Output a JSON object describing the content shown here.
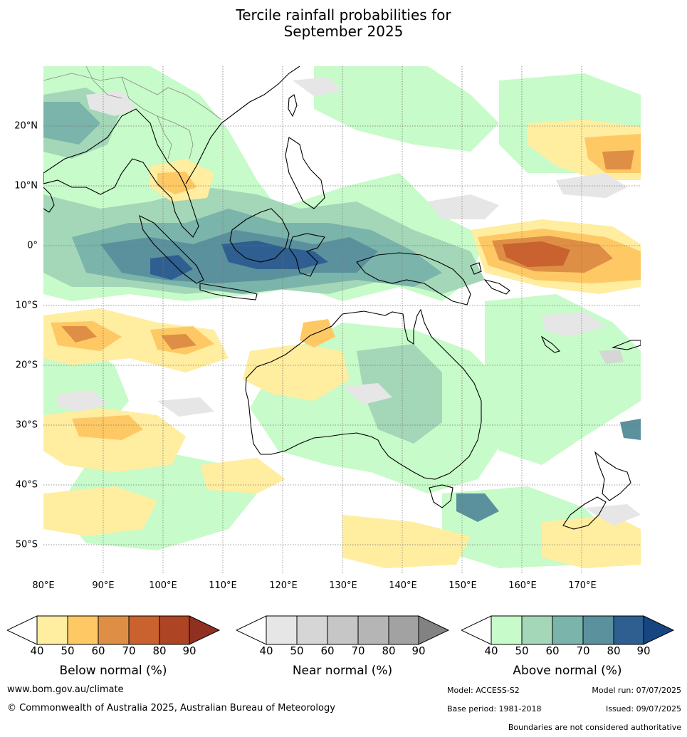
{
  "title_line1": "Tercile rainfall probabilities for",
  "title_line2": "September 2025",
  "lat_ticks": [
    "20°N",
    "10°N",
    "0°",
    "10°S",
    "20°S",
    "30°S",
    "40°S",
    "50°S"
  ],
  "lat_values": [
    20,
    10,
    0,
    -10,
    -20,
    -30,
    -40,
    -50
  ],
  "lon_ticks": [
    "80°E",
    "90°E",
    "100°E",
    "110°E",
    "120°E",
    "130°E",
    "140°E",
    "150°E",
    "160°E",
    "170°E"
  ],
  "lon_values": [
    80,
    90,
    100,
    110,
    120,
    130,
    140,
    150,
    160,
    170
  ],
  "map_extent": {
    "lon_min": 80,
    "lon_max": 180,
    "lat_min": -55,
    "lat_max": 30
  },
  "colorbars": [
    {
      "key": "below",
      "label": "Below normal (%)",
      "ticks": [
        "40",
        "50",
        "60",
        "70",
        "80",
        "90"
      ],
      "colors": [
        "#ffeda0",
        "#fec965",
        "#de8f45",
        "#c9622e",
        "#ad4424",
        "#8f3020"
      ],
      "ext_low": "#ffffff"
    },
    {
      "key": "near",
      "label": "Near normal (%)",
      "ticks": [
        "40",
        "50",
        "60",
        "70",
        "80",
        "90"
      ],
      "colors": [
        "#e6e6e6",
        "#d6d6d6",
        "#c6c6c6",
        "#b5b5b5",
        "#a2a2a2",
        "#828282"
      ],
      "ext_low": "#ffffff"
    },
    {
      "key": "above",
      "label": "Above normal (%)",
      "ticks": [
        "40",
        "50",
        "60",
        "70",
        "80",
        "90"
      ],
      "colors": [
        "#c7fbc9",
        "#a3d7b8",
        "#7ab4aa",
        "#5a919d",
        "#2f5f91",
        "#154680"
      ],
      "ext_low": "#ffffff"
    }
  ],
  "footer": {
    "website": "www.bom.gov.au/climate",
    "copyright": "© Commonwealth of Australia 2025, Australian Bureau of Meteorology",
    "model": "Model: ACCESS-S2",
    "model_run": "Model run: 07/07/2025",
    "base_period": "Base period: 1981-2018",
    "issued": "Issued: 09/07/2025",
    "boundaries": "Boundaries are not considered authoritative"
  },
  "map_colors": {
    "above_1": "#c7fbc9",
    "above_2": "#a3d7b8",
    "above_3": "#7ab4aa",
    "above_4": "#5a919d",
    "above_5": "#2f5f91",
    "below_1": "#ffeda0",
    "below_2": "#fec965",
    "below_3": "#de8f45",
    "below_4": "#c9622e",
    "near_1": "#e6e6e6",
    "near_2": "#d6d6d6",
    "coast": "#000000",
    "border": "#888888",
    "grid": "#777777"
  }
}
